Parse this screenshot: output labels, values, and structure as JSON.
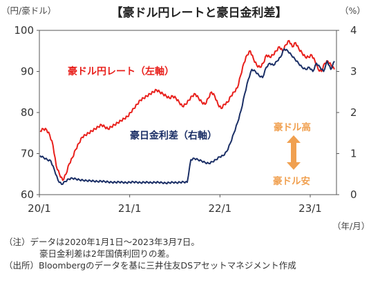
{
  "chart_data": {
    "type": "line",
    "title": "【豪ドル円レートと豪日金利差】",
    "left_unit": "（円/豪ドル）",
    "right_unit": "（%）",
    "x_unit": "（年/月）",
    "x_ticks": [
      "20/1",
      "21/1",
      "22/1",
      "23/1"
    ],
    "left_axis": {
      "min": 60,
      "max": 100,
      "ticks": [
        60,
        70,
        80,
        90,
        100
      ]
    },
    "right_axis": {
      "min": 0,
      "max": 4,
      "ticks": [
        0,
        1,
        2,
        3,
        4
      ]
    },
    "grid": false,
    "series": [
      {
        "name": "豪ドル円レート（左軸）",
        "axis": "left",
        "color": "#e8201c",
        "note": "approximate values traced from the plot, ordered in time",
        "values": [
          75.5,
          76,
          75.8,
          74.5,
          72,
          67,
          65,
          63.5,
          65,
          67.5,
          69,
          71,
          72.5,
          74,
          74.5,
          75,
          75.5,
          76,
          76.5,
          77,
          76.5,
          76,
          76.5,
          77,
          77.5,
          78,
          78.5,
          79,
          80,
          81,
          82,
          83,
          83.5,
          84,
          84.5,
          85,
          85.5,
          85,
          84.5,
          84,
          83.5,
          84,
          83.5,
          82.5,
          81.5,
          82,
          83,
          84,
          84.5,
          83.5,
          82.5,
          82,
          83.5,
          85,
          84,
          82,
          81,
          82,
          82.5,
          84,
          85,
          86,
          89,
          92,
          94,
          95,
          93,
          91.5,
          91,
          92,
          94,
          93.5,
          94,
          95,
          96,
          95,
          96.5,
          97.5,
          96,
          97,
          95.5,
          94.5,
          93.5,
          93.5,
          94,
          92.5,
          90.5,
          90,
          92,
          92.5,
          91.5,
          90.5
        ]
      },
      {
        "name": "豪日金利差（右軸）",
        "axis": "right",
        "color": "#1b2f66",
        "note": "approximate values traced from the plot, ordered in time",
        "values": [
          0.95,
          0.9,
          0.85,
          0.82,
          0.6,
          0.35,
          0.25,
          0.32,
          0.38,
          0.4,
          0.38,
          0.36,
          0.35,
          0.34,
          0.34,
          0.33,
          0.32,
          0.33,
          0.32,
          0.31,
          0.3,
          0.3,
          0.31,
          0.3,
          0.29,
          0.3,
          0.31,
          0.3,
          0.29,
          0.3,
          0.3,
          0.29,
          0.3,
          0.3,
          0.29,
          0.28,
          0.29,
          0.3,
          0.29,
          0.3,
          0.31,
          0.3,
          0.85,
          0.88,
          0.85,
          0.82,
          0.78,
          0.76,
          0.8,
          0.85,
          0.92,
          0.95,
          1.05,
          1.25,
          1.5,
          1.75,
          2.05,
          2.45,
          2.8,
          3.05,
          3.0,
          2.9,
          2.85,
          3.1,
          3.2,
          3.15,
          3.25,
          3.35,
          3.55,
          3.5,
          3.4,
          3.3,
          3.2,
          3.1,
          3.05,
          3.1,
          3.0,
          3.2,
          3.1,
          3.0,
          3.25,
          3.05,
          3.25
        ]
      }
    ],
    "annotations": {
      "aud_up": "豪ドル高",
      "aud_down": "豪ドル安"
    }
  },
  "notes": {
    "line1": "（注）データは2020年1月1日～2023年3月7日。",
    "line2": "豪日金利差は2年国債利回りの差。",
    "line3": "（出所）Bloombergのデータを基に三井住友DSアセットマネジメント作成"
  }
}
